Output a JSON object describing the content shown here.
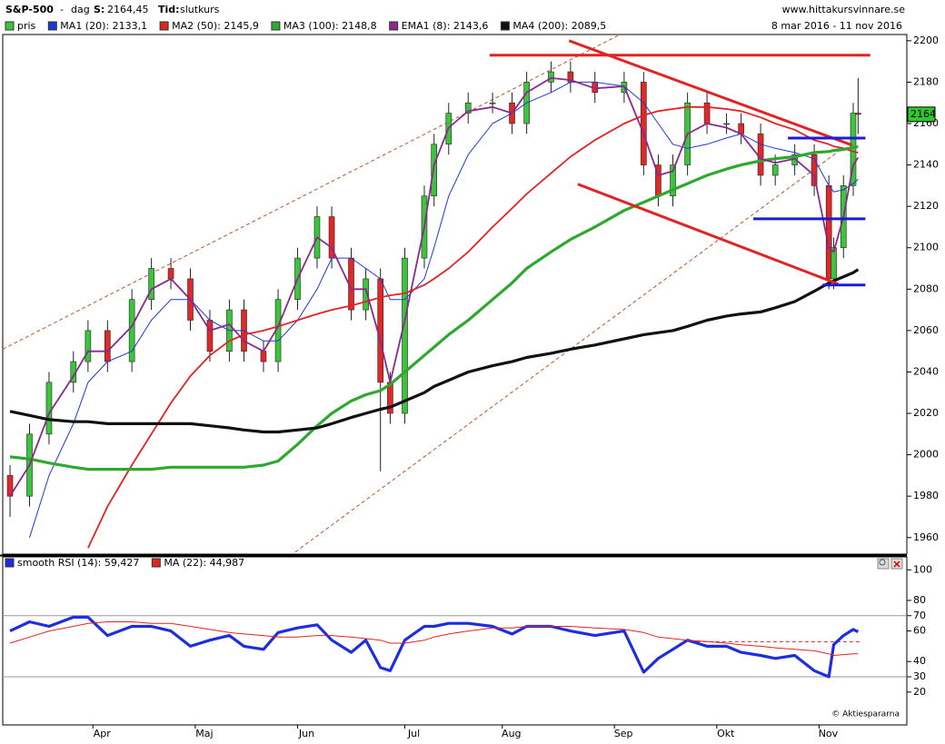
{
  "header": {
    "symbol": "S&P-500",
    "separator": "-",
    "period": "dag",
    "last_label": "S:",
    "last_value": "2164,45",
    "time_label": "Tid:",
    "time_value": "slutkurs",
    "site": "www.hittakursvinnare.se",
    "date_range": "8 mar 2016 - 11 nov 2016",
    "copyright": "© Aktiespararna"
  },
  "chart_data": [
    {
      "type": "candlestick",
      "xlim": [
        -1.5,
        184
      ],
      "ylim": [
        1952,
        2203
      ],
      "yticks": [
        1960,
        1980,
        2000,
        2020,
        2040,
        2060,
        2080,
        2100,
        2120,
        2140,
        2160,
        2180,
        2200
      ],
      "price_tag": "2164",
      "candles": {
        "name": "pris",
        "up_color": "#3cc43c",
        "down_color": "#e02828",
        "x": [
          0,
          4,
          8,
          13,
          16,
          20,
          25,
          29,
          33,
          37,
          41,
          45,
          48,
          52,
          55,
          59,
          63,
          66,
          70,
          73,
          76,
          78,
          81,
          85,
          87,
          90,
          94,
          99,
          103,
          106,
          111,
          115,
          120,
          126,
          130,
          133,
          136,
          139,
          143,
          147,
          150,
          154,
          157,
          161,
          165,
          168,
          169,
          171,
          173,
          174
        ],
        "open": [
          1990,
          1980,
          2010,
          2035,
          2045,
          2060,
          2045,
          2075,
          2090,
          2085,
          2065,
          2050,
          2070,
          2050,
          2045,
          2075,
          2095,
          2115,
          2095,
          2070,
          2085,
          2035,
          2020,
          2095,
          2125,
          2150,
          2165,
          2170,
          2170,
          2160,
          2180,
          2185,
          2180,
          2175,
          2180,
          2140,
          2125,
          2140,
          2170,
          2160,
          2160,
          2155,
          2135,
          2140,
          2145,
          2130,
          2085,
          2100,
          2130,
          2165
        ],
        "high": [
          1995,
          2015,
          2040,
          2050,
          2065,
          2065,
          2080,
          2095,
          2095,
          2090,
          2070,
          2075,
          2075,
          2055,
          2080,
          2100,
          2120,
          2120,
          2100,
          2090,
          2090,
          2040,
          2100,
          2130,
          2155,
          2170,
          2175,
          2175,
          2175,
          2185,
          2190,
          2190,
          2185,
          2185,
          2185,
          2145,
          2145,
          2175,
          2175,
          2165,
          2165,
          2160,
          2145,
          2150,
          2150,
          2135,
          2105,
          2135,
          2170,
          2182
        ],
        "low": [
          1970,
          1975,
          2005,
          2030,
          2040,
          2040,
          2040,
          2070,
          2080,
          2060,
          2045,
          2045,
          2045,
          2040,
          2040,
          2070,
          2090,
          2090,
          2065,
          2065,
          1992,
          2015,
          2015,
          2090,
          2120,
          2145,
          2160,
          2165,
          2155,
          2155,
          2175,
          2175,
          2170,
          2170,
          2135,
          2120,
          2120,
          2135,
          2155,
          2155,
          2150,
          2130,
          2130,
          2135,
          2125,
          2080,
          2080,
          2095,
          2125,
          2155
        ],
        "close": [
          1980,
          2010,
          2035,
          2045,
          2060,
          2045,
          2075,
          2090,
          2085,
          2065,
          2050,
          2070,
          2050,
          2045,
          2075,
          2095,
          2115,
          2095,
          2070,
          2085,
          2035,
          2020,
          2095,
          2125,
          2150,
          2165,
          2170,
          2170,
          2160,
          2180,
          2185,
          2180,
          2175,
          2180,
          2140,
          2125,
          2140,
          2170,
          2160,
          2160,
          2155,
          2135,
          2140,
          2145,
          2130,
          2085,
          2100,
          2130,
          2165,
          2164.45
        ]
      },
      "series": [
        {
          "name": "MA1 (20): 2133,1",
          "color": "#1c3ad6",
          "weight": "normal",
          "values": [
            null,
            1960,
            1990,
            2015,
            2035,
            2045,
            2050,
            2065,
            2075,
            2075,
            2065,
            2060,
            2060,
            2055,
            2055,
            2065,
            2080,
            2095,
            2095,
            2090,
            2085,
            2075,
            2075,
            2085,
            2100,
            2125,
            2145,
            2160,
            2165,
            2170,
            2175,
            2180,
            2180,
            2178,
            2170,
            2160,
            2150,
            2148,
            2150,
            2153,
            2155,
            2150,
            2148,
            2146,
            2143,
            2130,
            2127,
            2128,
            2131,
            2133.1
          ]
        },
        {
          "name": "MA2 (50): 2145,9",
          "color": "#e32222",
          "weight": "medium",
          "values": [
            null,
            null,
            null,
            null,
            1955,
            1975,
            1995,
            2010,
            2025,
            2038,
            2048,
            2055,
            2058,
            2060,
            2062,
            2065,
            2068,
            2070,
            2072,
            2074,
            2076,
            2077,
            2078,
            2082,
            2085,
            2090,
            2098,
            2110,
            2119,
            2126,
            2136,
            2144,
            2152,
            2160,
            2164,
            2166,
            2167,
            2168,
            2168,
            2167,
            2166,
            2163,
            2160,
            2157,
            2152,
            2150,
            2149,
            2148,
            2146.5,
            2145.9
          ]
        },
        {
          "name": "MA3 (100): 2148,8",
          "color": "#2ea82e",
          "weight": "bold",
          "values": [
            1999,
            1998,
            1996,
            1994,
            1993,
            1993,
            1993,
            1993,
            1994,
            1994,
            1994,
            1994,
            1994,
            1995,
            1997,
            2005,
            2014,
            2020,
            2026,
            2029,
            2031,
            2034,
            2040,
            2048,
            2052,
            2058,
            2065,
            2075,
            2083,
            2090,
            2098,
            2104,
            2110,
            2118,
            2122,
            2125,
            2128,
            2131,
            2135,
            2138,
            2140,
            2142,
            2143,
            2144,
            2146,
            2146.5,
            2147,
            2147.5,
            2148.5,
            2148.8
          ]
        },
        {
          "name": "EMA1 (8): 2143,6",
          "color": "#8a2a8a",
          "weight": "medium",
          "values": [
            1980,
            1995,
            2020,
            2038,
            2050,
            2050,
            2062,
            2080,
            2085,
            2075,
            2060,
            2063,
            2055,
            2050,
            2062,
            2085,
            2105,
            2100,
            2080,
            2080,
            2055,
            2035,
            2065,
            2110,
            2140,
            2158,
            2166,
            2168,
            2165,
            2175,
            2182,
            2181,
            2177,
            2178,
            2155,
            2135,
            2137,
            2155,
            2160,
            2158,
            2155,
            2143,
            2141,
            2143,
            2135,
            2100,
            2098,
            2115,
            2140,
            2143.6
          ]
        },
        {
          "name": "MA4 (200): 2089,5",
          "color": "#111111",
          "weight": "bold",
          "values": [
            2021,
            2019,
            2017,
            2016,
            2016,
            2015,
            2015,
            2015,
            2015,
            2015,
            2014,
            2013,
            2012,
            2011,
            2011,
            2012,
            2013,
            2015,
            2018,
            2020,
            2022,
            2023,
            2026,
            2030,
            2033,
            2036,
            2040,
            2043,
            2045,
            2047,
            2049,
            2051,
            2053,
            2056,
            2058,
            2059,
            2060,
            2062,
            2065,
            2067,
            2068,
            2069,
            2071,
            2074,
            2079,
            2083,
            2084,
            2086,
            2088,
            2089.5
          ]
        }
      ],
      "trend_lines": [
        {
          "x": [
            -1.5,
            126
          ],
          "y": [
            2051,
            2204
          ],
          "color": "#c0502a",
          "dash": true
        },
        {
          "x": [
            58.5,
            170.8
          ],
          "y": [
            1953,
            2148
          ],
          "color": "#c0502a",
          "dash": true
        },
        {
          "x": [
            98.4,
            176.5
          ],
          "y": [
            2193,
            2193
          ],
          "color": "#e32222",
          "dash": false
        },
        {
          "x": [
            114.7,
            172.7
          ],
          "y": [
            2200,
            2149.6
          ],
          "color": "#e32222",
          "dash": false
        },
        {
          "x": [
            116.5,
            169.9
          ],
          "y": [
            2130.7,
            2082.5
          ],
          "color": "#e32222",
          "dash": false
        },
        {
          "x": [
            159.6,
            175.5
          ],
          "y": [
            2153,
            2153
          ],
          "color": "#1a1ae0",
          "dash": false
        },
        {
          "x": [
            152.5,
            175.5
          ],
          "y": [
            2114,
            2114
          ],
          "color": "#1a1ae0",
          "dash": false
        },
        {
          "x": [
            166.7,
            175.5
          ],
          "y": [
            2082,
            2082
          ],
          "color": "#1a1ae0",
          "dash": false
        }
      ]
    },
    {
      "type": "line",
      "xlim": [
        -1.5,
        184
      ],
      "ylim": [
        -1.5,
        108.5
      ],
      "yticks": [
        20,
        30,
        40,
        60,
        70,
        80,
        100
      ],
      "hlines": [
        70,
        30
      ],
      "xticks": [
        {
          "value": 17,
          "label": "Apr"
        },
        {
          "value": 38,
          "label": "Maj"
        },
        {
          "value": 59,
          "label": "Jun"
        },
        {
          "value": 81,
          "label": "Jul"
        },
        {
          "value": 101,
          "label": "Aug"
        },
        {
          "value": 124,
          "label": "Sep"
        },
        {
          "value": 145,
          "label": "Okt"
        },
        {
          "value": 166,
          "label": "Nov"
        }
      ],
      "x": [
        0,
        4,
        8,
        13,
        16,
        20,
        25,
        29,
        33,
        37,
        41,
        45,
        48,
        52,
        55,
        59,
        63,
        66,
        70,
        73,
        76,
        78,
        81,
        85,
        87,
        90,
        94,
        99,
        103,
        106,
        111,
        115,
        120,
        126,
        130,
        133,
        136,
        139,
        143,
        147,
        150,
        154,
        157,
        161,
        165,
        168,
        169,
        171,
        173,
        174
      ],
      "series": [
        {
          "name": "smooth RSI (14): 59,427",
          "color": "#1c2ee0",
          "weight": "bold",
          "values": [
            60,
            66,
            63,
            69,
            69,
            57,
            63,
            63,
            60,
            50,
            54,
            57,
            50,
            48,
            59,
            62,
            64,
            54,
            46,
            54,
            36,
            34,
            54,
            63,
            63,
            65,
            65,
            63,
            58,
            63,
            63,
            60,
            57,
            60,
            33,
            42,
            48,
            54,
            50,
            50,
            46,
            44,
            42,
            44,
            34,
            30,
            51,
            57,
            61,
            59.427
          ]
        },
        {
          "name": "MA (22): 44,987",
          "color": "#e32222",
          "weight": "normal",
          "values": [
            52,
            56,
            60,
            63,
            65,
            66,
            66,
            65,
            65,
            63,
            61,
            59,
            58,
            57,
            56,
            56,
            57,
            57,
            56,
            55,
            54,
            52,
            52,
            54,
            56,
            58,
            60,
            62,
            62,
            63,
            63,
            63,
            62,
            61,
            59,
            56,
            55,
            54,
            53,
            52,
            51,
            50,
            49,
            48,
            47,
            45,
            44,
            44.5,
            45,
            44.987
          ]
        }
      ],
      "trend_lines": [
        {
          "x": [
            140.9,
            174.6
          ],
          "y": [
            53,
            53
          ],
          "color": "#e32222",
          "dash": true
        }
      ]
    }
  ]
}
